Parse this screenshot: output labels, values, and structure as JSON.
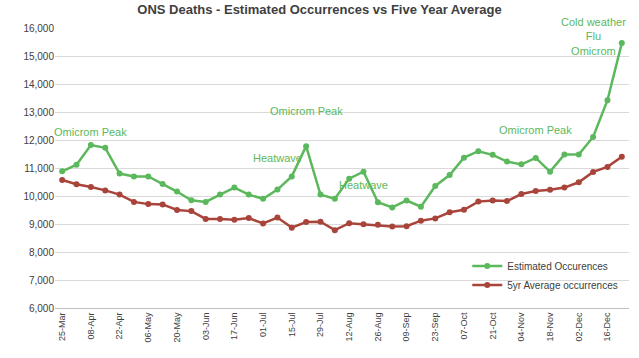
{
  "chart_data": {
    "type": "line",
    "title": "ONS Deaths - Estimated Occurrences vs Five Year Average",
    "categories": [
      "25-Mar",
      null,
      "08-Apr",
      null,
      "22-Apr",
      null,
      "06-May",
      null,
      "20-May",
      null,
      "03-Jun",
      null,
      "17-Jun",
      null,
      "01-Jul",
      null,
      "15-Jul",
      null,
      "29-Jul",
      null,
      "12-Aug",
      null,
      "26-Aug",
      null,
      "09-Sep",
      null,
      "23-Sep",
      null,
      "07-Oct",
      null,
      "21-Oct",
      null,
      "04-Nov",
      null,
      "18-Nov",
      null,
      "02-Dec",
      null,
      "16-Dec",
      null
    ],
    "series": [
      {
        "name": "Estimated Occurences",
        "color": "#5cb85c",
        "marker": "circle",
        "line_style": "solid",
        "values": [
          10880,
          11120,
          11820,
          11720,
          10800,
          10700,
          10700,
          10430,
          10160,
          9850,
          9790,
          10050,
          10300,
          10050,
          9900,
          10230,
          10700,
          11780,
          10050,
          9900,
          10620,
          10870,
          9780,
          9590,
          9840,
          9620,
          10360,
          10750,
          11370,
          11600,
          11470,
          11230,
          11130,
          11360,
          10870,
          11480,
          11480,
          12110,
          13420,
          15460
        ]
      },
      {
        "name": "5yr Average occurrences",
        "color": "#a9443b",
        "marker": "circle",
        "line_style": "solid",
        "values": [
          10570,
          10420,
          10320,
          10200,
          10050,
          9790,
          9710,
          9700,
          9500,
          9460,
          9180,
          9180,
          9150,
          9210,
          9020,
          9230,
          8870,
          9070,
          9080,
          8780,
          9030,
          8990,
          8970,
          8910,
          8920,
          9120,
          9200,
          9420,
          9510,
          9800,
          9840,
          9820,
          10070,
          10180,
          10220,
          10300,
          10490,
          10860,
          11040,
          11400
        ]
      }
    ],
    "annotations": [
      {
        "text": [
          "Omicrom Peak"
        ],
        "x": 2,
        "y": 12300
      },
      {
        "text": [
          "Omicrom Peak"
        ],
        "x": 17,
        "y": 13050
      },
      {
        "text": [
          "Heatwave"
        ],
        "x": 15,
        "y": 11350
      },
      {
        "text": [
          "Heatwave"
        ],
        "x": 21,
        "y": 10400
      },
      {
        "text": [
          "Omicrom Peak"
        ],
        "x": 33,
        "y": 12350
      },
      {
        "text": [
          "Cold weather",
          "Flu",
          "Omicrom"
        ],
        "x": 37,
        "y": 15700
      }
    ],
    "ylim": [
      6000,
      16000
    ],
    "yticks": [
      {
        "value": 6000,
        "label": "6,000"
      },
      {
        "value": 7000,
        "label": "7,000"
      },
      {
        "value": 8000,
        "label": "8,000"
      },
      {
        "value": 9000,
        "label": "9,000"
      },
      {
        "value": 10000,
        "label": "10,000"
      },
      {
        "value": 11000,
        "label": "11,000"
      },
      {
        "value": 12000,
        "label": "12,000"
      },
      {
        "value": 13000,
        "label": "13,000"
      },
      {
        "value": 14000,
        "label": "14,000"
      },
      {
        "value": 15000,
        "label": "15,000"
      },
      {
        "value": 16000,
        "label": "16,000"
      }
    ],
    "grid": true,
    "legend": "lower right"
  }
}
